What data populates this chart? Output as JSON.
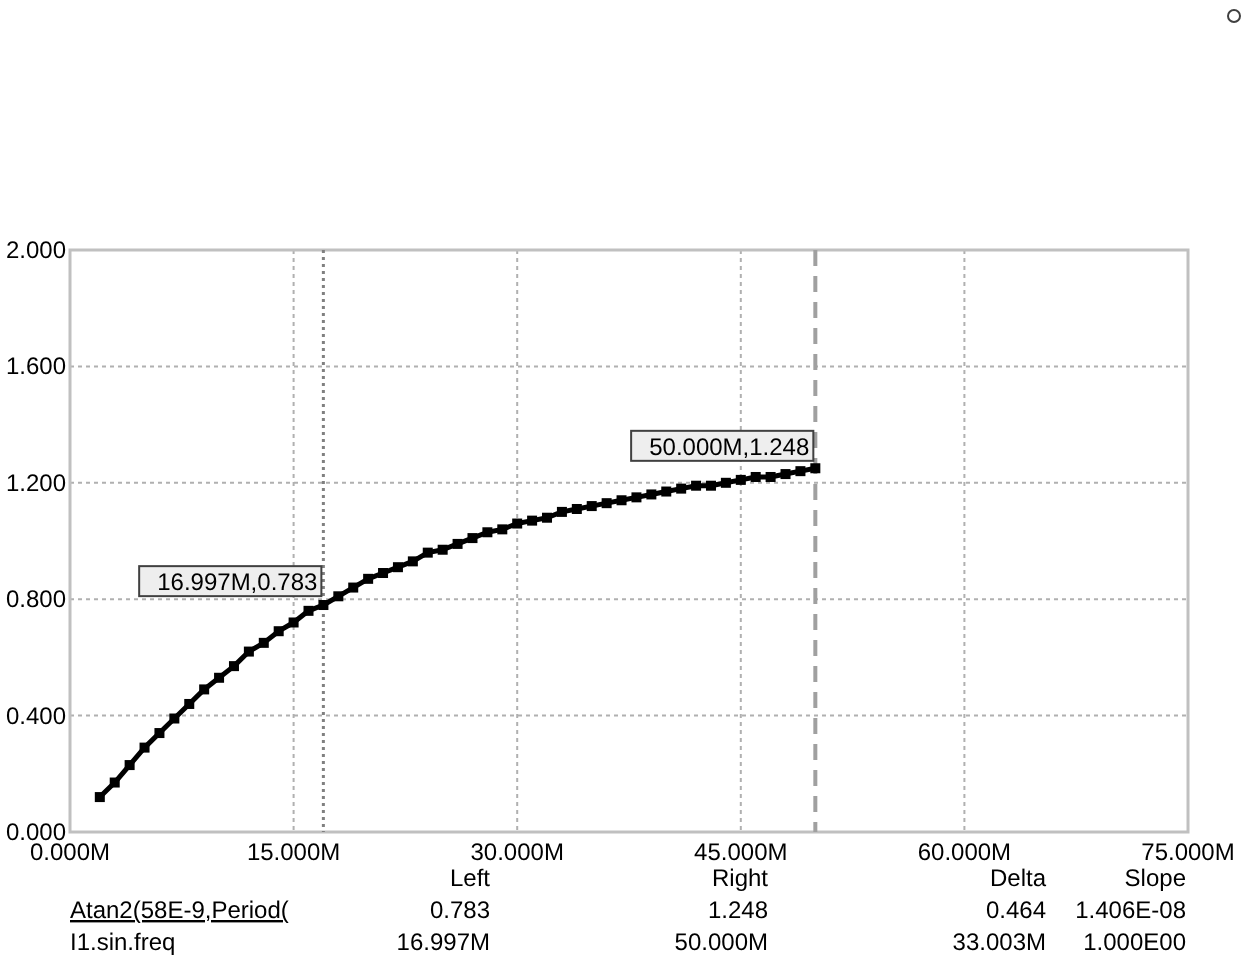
{
  "chart_data": {
    "type": "line",
    "x": [
      2,
      3,
      4,
      5,
      6,
      7,
      8,
      9,
      10,
      11,
      12,
      13,
      14,
      15,
      16,
      17,
      18,
      19,
      20,
      21,
      22,
      23,
      24,
      25,
      26,
      27,
      28,
      29,
      30,
      31,
      32,
      33,
      34,
      35,
      36,
      37,
      38,
      39,
      40,
      41,
      42,
      43,
      44,
      45,
      46,
      47,
      48,
      49,
      50
    ],
    "series": [
      {
        "color": "#000000",
        "values": [
          0.12,
          0.17,
          0.23,
          0.29,
          0.34,
          0.39,
          0.44,
          0.49,
          0.53,
          0.57,
          0.62,
          0.65,
          0.69,
          0.72,
          0.76,
          0.78,
          0.81,
          0.84,
          0.87,
          0.89,
          0.91,
          0.93,
          0.96,
          0.97,
          0.99,
          1.01,
          1.03,
          1.04,
          1.06,
          1.07,
          1.08,
          1.1,
          1.11,
          1.12,
          1.13,
          1.14,
          1.15,
          1.16,
          1.17,
          1.18,
          1.19,
          1.19,
          1.2,
          1.21,
          1.22,
          1.22,
          1.23,
          1.24,
          1.25
        ]
      }
    ],
    "xlim": [
      0,
      75
    ],
    "xticks": [
      {
        "value": 0,
        "label": "0.000M"
      },
      {
        "value": 15,
        "label": "15.000M"
      },
      {
        "value": 30,
        "label": "30.000M"
      },
      {
        "value": 45,
        "label": "45.000M"
      },
      {
        "value": 60,
        "label": "60.000M"
      },
      {
        "value": 75,
        "label": "75.000M"
      }
    ],
    "ylim": [
      0,
      2
    ],
    "yticks": [
      {
        "value": 0,
        "label": "0.000"
      },
      {
        "value": 0.4,
        "label": "0.400"
      },
      {
        "value": 0.8,
        "label": "0.800"
      },
      {
        "value": 1.2,
        "label": "1.200"
      },
      {
        "value": 1.6,
        "label": "1.600"
      },
      {
        "value": 2,
        "label": "2.000"
      }
    ],
    "grid": true,
    "marker": "square",
    "line_style": "solid",
    "ref_lines": [
      {
        "axis": "x",
        "value": 16.997,
        "line_style": "dotted",
        "color": "#808080"
      },
      {
        "axis": "x",
        "value": 50,
        "line_style": "dashed",
        "color": "#a0a0a0"
      }
    ],
    "annotations": [
      {
        "text": "16.997M,0.783",
        "x": 16.997,
        "y": 0.783
      },
      {
        "text": "50.000M,1.248",
        "x": 50,
        "y": 1.248
      },
      "Left",
      "Right",
      "Delta",
      "Slope",
      "Atan2(58E-9,Period(",
      "0.783",
      "1.248",
      "0.464",
      "1.406E-08",
      "I1.sin.freq",
      "16.997M",
      "50.000M",
      "33.003M",
      "1.000E00"
    ]
  }
}
